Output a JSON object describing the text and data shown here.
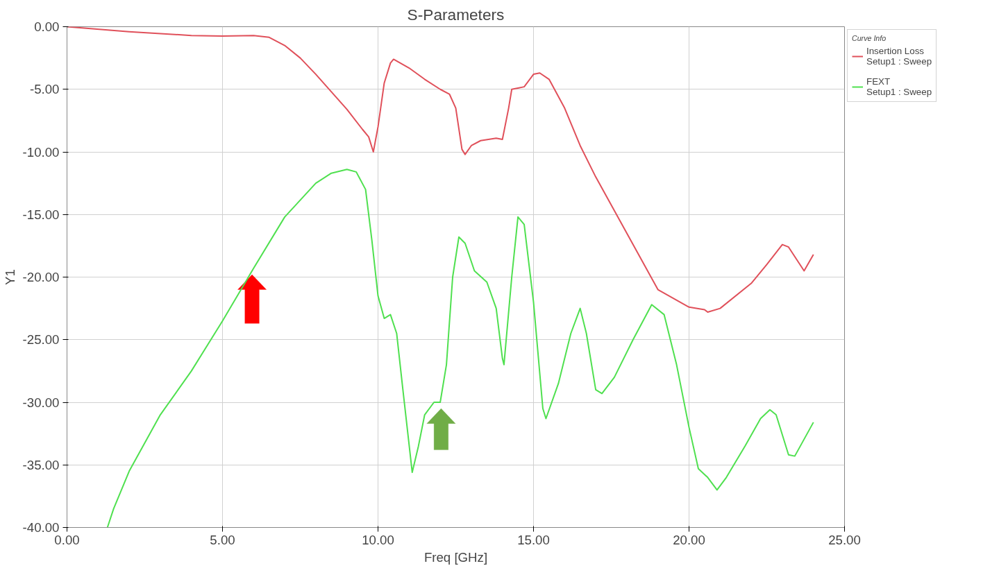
{
  "chart_data": {
    "type": "line",
    "title": "S-Parameters",
    "xlabel": "Freq [GHz]",
    "ylabel": "Y1",
    "legend_title": "Curve Info",
    "xlim": [
      0,
      25
    ],
    "ylim": [
      -40,
      0
    ],
    "xticks": [
      {
        "value": 0,
        "label": "0.00"
      },
      {
        "value": 5,
        "label": "5.00"
      },
      {
        "value": 10,
        "label": "10.00"
      },
      {
        "value": 15,
        "label": "15.00"
      },
      {
        "value": 20,
        "label": "20.00"
      },
      {
        "value": 25,
        "label": "25.00"
      }
    ],
    "yticks": [
      {
        "value": -40,
        "label": "-40.00"
      },
      {
        "value": -35,
        "label": "-35.00"
      },
      {
        "value": -30,
        "label": "-30.00"
      },
      {
        "value": -25,
        "label": "-25.00"
      },
      {
        "value": -20,
        "label": "-20.00"
      },
      {
        "value": -15,
        "label": "-15.00"
      },
      {
        "value": -10,
        "label": "-10.00"
      },
      {
        "value": -5,
        "label": "-5.00"
      },
      {
        "value": 0,
        "label": "0.00"
      }
    ],
    "grid": true,
    "legend": "right",
    "marker": "none",
    "line_style": "solid",
    "series": [
      {
        "name": "Insertion Loss\nSetup1 : Sweep",
        "color": "#e0505a",
        "x": [
          0,
          2,
          4,
          5,
          6,
          6.5,
          7,
          7.5,
          8,
          8.5,
          9,
          9.5,
          9.7,
          9.85,
          10,
          10.2,
          10.4,
          10.5,
          11,
          11.5,
          12,
          12.3,
          12.5,
          12.7,
          12.8,
          13,
          13.3,
          13.8,
          14,
          14.2,
          14.3,
          14.5,
          14.7,
          15,
          15.2,
          15.5,
          16,
          16.5,
          17,
          18,
          19,
          20,
          20.5,
          20.6,
          21,
          22,
          22.5,
          23,
          23.2,
          23.7,
          24
        ],
        "values": [
          0,
          -0.4,
          -0.7,
          -0.75,
          -0.7,
          -0.85,
          -1.5,
          -2.5,
          -3.8,
          -5.2,
          -6.6,
          -8.2,
          -8.8,
          -10.0,
          -8.0,
          -4.5,
          -2.9,
          -2.6,
          -3.3,
          -4.2,
          -5.0,
          -5.4,
          -6.5,
          -9.8,
          -10.2,
          -9.5,
          -9.1,
          -8.9,
          -9.0,
          -6.5,
          -5.0,
          -4.9,
          -4.8,
          -3.8,
          -3.7,
          -4.2,
          -6.5,
          -9.5,
          -12.0,
          -16.5,
          -21.0,
          -22.4,
          -22.6,
          -22.8,
          -22.5,
          -20.5,
          -19.0,
          -17.4,
          -17.6,
          -19.5,
          -18.2
        ]
      },
      {
        "name": "FEXT\nSetup1 : Sweep",
        "color": "#4fe04f",
        "x": [
          1.3,
          1.5,
          2,
          3,
          4,
          5,
          6,
          7,
          8,
          8.5,
          9,
          9.3,
          9.6,
          9.8,
          10,
          10.2,
          10.4,
          10.6,
          10.8,
          11.1,
          11.3,
          11.5,
          11.8,
          12,
          12.2,
          12.4,
          12.6,
          12.8,
          13.1,
          13.5,
          13.8,
          14.0,
          14.05,
          14.3,
          14.5,
          14.7,
          15.0,
          15.3,
          15.4,
          15.8,
          16.2,
          16.5,
          16.7,
          17.0,
          17.2,
          17.6,
          18.2,
          18.8,
          19.2,
          19.6,
          20.0,
          20.3,
          20.6,
          20.9,
          21.2,
          21.8,
          22.3,
          22.6,
          22.8,
          23.2,
          23.4,
          24
        ],
        "values": [
          -40,
          -38.5,
          -35.5,
          -31,
          -27.5,
          -23.5,
          -19.3,
          -15.2,
          -12.5,
          -11.7,
          -11.4,
          -11.6,
          -13.0,
          -17,
          -21.5,
          -23.3,
          -23.0,
          -24.5,
          -29,
          -35.6,
          -33.5,
          -31,
          -30.0,
          -30.0,
          -27,
          -20,
          -16.8,
          -17.3,
          -19.5,
          -20.4,
          -22.5,
          -26.5,
          -27.0,
          -20,
          -15.2,
          -15.8,
          -22,
          -30.5,
          -31.3,
          -28.5,
          -24.5,
          -22.5,
          -24.5,
          -29.0,
          -29.3,
          -28,
          -25,
          -22.2,
          -23,
          -27,
          -32,
          -35.3,
          -36.0,
          -37.0,
          -36.0,
          -33.5,
          -31.3,
          -30.6,
          -31,
          -34.2,
          -34.3,
          -31.6
        ]
      }
    ]
  }
}
